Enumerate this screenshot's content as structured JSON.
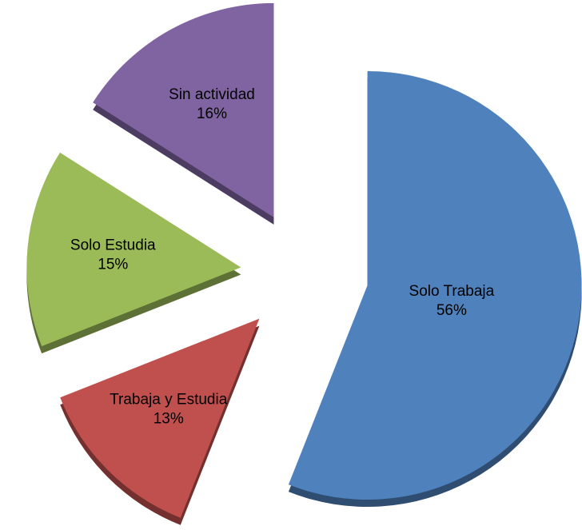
{
  "chart_data": {
    "type": "pie",
    "categories": [
      "Solo Trabaja",
      "Trabaja y Estudia",
      "Solo Estudia",
      "Sin actividad"
    ],
    "values": [
      56,
      13,
      15,
      16
    ],
    "value_labels": [
      "56%",
      "13%",
      "15%",
      "16%"
    ],
    "colors": [
      "#4f81bd",
      "#c0504d",
      "#9bbb59",
      "#8064a2"
    ],
    "exploded": true
  }
}
